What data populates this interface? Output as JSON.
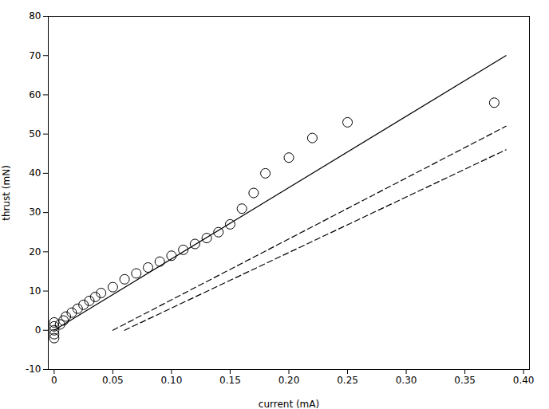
{
  "chart_data": {
    "type": "scatter",
    "xlabel": "current (mA)",
    "ylabel": "thrust (mN)",
    "xlim": [
      -0.005,
      0.405
    ],
    "ylim": [
      -10,
      80
    ],
    "xticks": [
      0,
      0.05,
      {
        "value": 0.1,
        "label": "0.10"
      },
      0.15,
      {
        "value": 0.2,
        "label": "0.20"
      },
      0.25,
      {
        "value": 0.3,
        "label": "0.30"
      },
      0.35,
      {
        "value": 0.4,
        "label": "0.40"
      }
    ],
    "yticks": [
      -10,
      0,
      10,
      20,
      30,
      40,
      50,
      60,
      70,
      80
    ],
    "grid": false,
    "series": [
      {
        "type": "line",
        "line_style": "solid",
        "color": "#000000",
        "x": [
          0,
          0.385
        ],
        "values": [
          0,
          70
        ]
      },
      {
        "type": "line",
        "line_style": "dashed",
        "color": "#000000",
        "x": [
          0.05,
          0.385
        ],
        "values": [
          0,
          52
        ]
      },
      {
        "type": "line",
        "line_style": "dashed",
        "color": "#000000",
        "x": [
          0.06,
          0.385
        ],
        "values": [
          0,
          46
        ]
      },
      {
        "type": "scatter",
        "marker": "hollow_circle",
        "color": "#000000",
        "x": [
          0.0,
          0.0,
          0.0,
          0.0,
          0.0,
          0.005,
          0.008,
          0.01,
          0.015,
          0.02,
          0.025,
          0.03,
          0.035,
          0.04,
          0.05,
          0.06,
          0.07,
          0.08,
          0.09,
          0.1,
          0.11,
          0.12,
          0.13,
          0.14,
          0.15,
          0.16,
          0.17,
          0.18,
          0.2,
          0.22,
          0.25,
          0.375
        ],
        "values": [
          -2.0,
          -1.0,
          0.0,
          1.0,
          2.0,
          1.5,
          2.5,
          3.5,
          4.5,
          5.5,
          6.5,
          7.5,
          8.5,
          9.5,
          11.0,
          13.0,
          14.5,
          16.0,
          17.5,
          19.0,
          20.5,
          22.0,
          23.5,
          25.0,
          27.0,
          31.0,
          35.0,
          40.0,
          44.0,
          49.0,
          53.0,
          58.0
        ]
      }
    ]
  }
}
